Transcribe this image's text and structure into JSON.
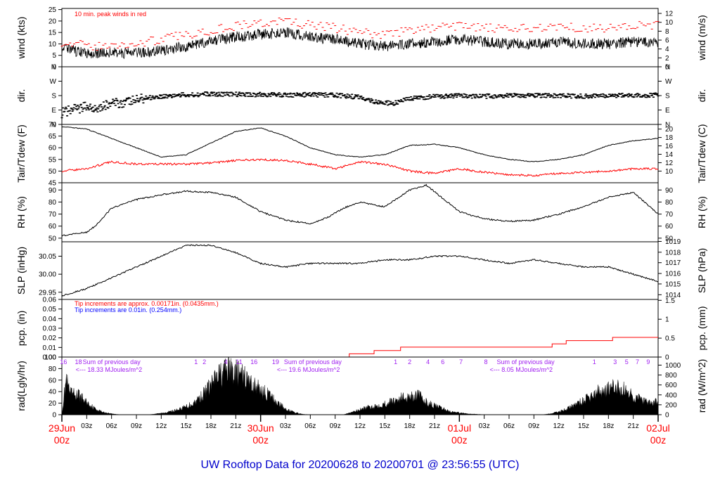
{
  "title": "UW Rooftop Data for 20200628  to  20200701 @ 23:56:55  (UTC)",
  "colors": {
    "red": "#ff0000",
    "blue": "#0000ff",
    "purple": "#a020f0",
    "black": "#000000",
    "title_blue": "#0000cc"
  },
  "x_axis": {
    "hour_ticks": [
      "03z",
      "06z",
      "09z",
      "12z",
      "15z",
      "18z",
      "21z",
      "03z",
      "06z",
      "09z",
      "12z",
      "15z",
      "18z",
      "21z",
      "03z",
      "06z",
      "09z",
      "12z",
      "15z",
      "18z",
      "21z"
    ],
    "hour_positions_h": [
      3,
      6,
      9,
      12,
      15,
      18,
      21,
      27,
      30,
      33,
      36,
      39,
      42,
      45,
      51,
      54,
      57,
      60,
      63,
      66,
      69
    ],
    "day_labels": [
      {
        "date": "29Jun",
        "time": "00z",
        "h": 0
      },
      {
        "date": "30Jun",
        "time": "00z",
        "h": 24
      },
      {
        "date": "01Jul",
        "time": "00z",
        "h": 48
      },
      {
        "date": "02Jul",
        "time": "00z",
        "h": 72
      }
    ]
  },
  "chart_data": [
    {
      "type": "line",
      "id": "wind",
      "ylabel": "wind (kts)",
      "ylabel_right": "wind (m/s)",
      "ylim": [
        0,
        25.5
      ],
      "left_ticks": [
        "0",
        "5",
        "10",
        "15",
        "20",
        "25"
      ],
      "left_tick_values": [
        0,
        5,
        10,
        15,
        20,
        25
      ],
      "right_ticks": [
        "0",
        "2",
        "4",
        "6",
        "8",
        "10",
        "12"
      ],
      "right_tick_values_kts": [
        0,
        3.89,
        7.78,
        11.66,
        15.55,
        19.44,
        23.33
      ],
      "annotation": "10 min. peak winds in red",
      "series": [
        {
          "name": "wind speed (kts)",
          "x_h": [
            0,
            3,
            6,
            9,
            12,
            15,
            18,
            21,
            24,
            27,
            30,
            33,
            36,
            39,
            42,
            45,
            48,
            51,
            54,
            57,
            60,
            63,
            66,
            69,
            72
          ],
          "values": [
            8,
            6,
            6,
            6,
            7,
            9,
            11,
            13,
            14,
            15,
            13,
            12,
            10,
            9,
            10,
            11,
            12,
            11,
            10,
            10,
            11,
            10,
            10,
            11,
            11
          ]
        },
        {
          "name": "10 min. peak winds (kts)",
          "x_h": [
            0,
            3,
            6,
            9,
            12,
            15,
            18,
            21,
            24,
            27,
            30,
            33,
            36,
            39,
            42,
            45,
            48,
            51,
            54,
            57,
            60,
            63,
            66,
            69,
            72
          ],
          "values": [
            11,
            9,
            9,
            10,
            12,
            14,
            16,
            18,
            19,
            20,
            18,
            17,
            15,
            14,
            16,
            17,
            18,
            17,
            16,
            17,
            18,
            17,
            17,
            18,
            18
          ]
        }
      ]
    },
    {
      "type": "scatter",
      "id": "dir",
      "ylabel": "dir.",
      "ylabel_right": "dir.",
      "ylim": [
        0,
        360
      ],
      "left_ticks": [
        "N",
        "E",
        "S",
        "W",
        "N"
      ],
      "left_tick_values": [
        0,
        90,
        180,
        270,
        360
      ],
      "series": [
        {
          "name": "wind direction (deg)",
          "x_h": [
            0,
            1,
            2,
            3,
            4,
            5,
            6,
            8,
            10,
            12,
            15,
            18,
            21,
            24,
            27,
            30,
            33,
            36,
            38,
            40,
            42,
            45,
            48,
            51,
            54,
            57,
            60,
            63,
            66,
            69,
            72
          ],
          "values": [
            70,
            90,
            100,
            110,
            105,
            115,
            130,
            140,
            165,
            175,
            185,
            190,
            188,
            186,
            184,
            186,
            182,
            170,
            140,
            130,
            160,
            175,
            178,
            176,
            180,
            182,
            178,
            176,
            182,
            180,
            184
          ]
        }
      ]
    },
    {
      "type": "line",
      "id": "temp",
      "ylabel": "Tair/Tdew (F)",
      "ylabel_right": "Tair/Tdew (C)",
      "ylim": [
        45,
        70
      ],
      "left_ticks": [
        "45",
        "50",
        "55",
        "60",
        "65",
        "70"
      ],
      "left_tick_values": [
        45,
        50,
        55,
        60,
        65,
        70
      ],
      "right_ticks": [
        "10",
        "12",
        "14",
        "16",
        "18",
        "20"
      ],
      "right_tick_values_f": [
        50,
        53.6,
        57.2,
        60.8,
        64.4,
        68
      ],
      "series": [
        {
          "name": "Tair (F)",
          "x_h": [
            0,
            3,
            6,
            9,
            12,
            15,
            18,
            21,
            24,
            27,
            30,
            33,
            36,
            39,
            42,
            45,
            48,
            51,
            54,
            57,
            60,
            63,
            66,
            69,
            72
          ],
          "values": [
            69,
            68,
            64,
            60,
            56,
            57,
            62,
            67,
            68.5,
            65,
            60,
            57,
            56,
            57,
            61,
            61.5,
            60,
            57,
            55,
            54,
            55,
            57,
            61,
            63,
            64
          ]
        },
        {
          "name": "Tdew (F)",
          "x_h": [
            0,
            3,
            6,
            9,
            12,
            15,
            18,
            21,
            24,
            27,
            30,
            33,
            36,
            39,
            42,
            45,
            48,
            51,
            54,
            57,
            60,
            63,
            66,
            69,
            72
          ],
          "values": [
            50,
            51,
            54,
            53,
            53,
            53,
            53.5,
            54.5,
            55,
            54.5,
            53,
            51,
            54,
            53,
            50,
            49,
            51,
            49.5,
            48.5,
            48,
            49,
            49.5,
            50,
            51,
            51
          ]
        }
      ]
    },
    {
      "type": "line",
      "id": "rh",
      "ylabel": "RH (%)",
      "ylabel_right": "RH (%)",
      "ylim": [
        47,
        96
      ],
      "left_ticks": [
        "50",
        "60",
        "70",
        "80",
        "90"
      ],
      "left_tick_values": [
        50,
        60,
        70,
        80,
        90
      ],
      "series": [
        {
          "name": "RH (%)",
          "x_h": [
            0,
            3,
            4,
            6,
            9,
            12,
            15,
            18,
            21,
            24,
            27,
            30,
            32,
            34,
            36,
            39,
            42,
            44,
            48,
            51,
            54,
            57,
            60,
            63,
            66,
            69,
            72
          ],
          "values": [
            52,
            55,
            60,
            75,
            82,
            86,
            89,
            88,
            84,
            72,
            65,
            62,
            67,
            75,
            80,
            76,
            90,
            94,
            72,
            66,
            64,
            65,
            70,
            76,
            84,
            88,
            70
          ]
        }
      ]
    },
    {
      "type": "line",
      "id": "slp",
      "ylabel": "SLP (inHg)",
      "ylabel_right": "SLP (hPa)",
      "ylim": [
        29.93,
        30.09
      ],
      "left_ticks": [
        "29.95",
        "30.00",
        "30.05"
      ],
      "left_tick_values": [
        29.95,
        30.0,
        30.05
      ],
      "right_ticks": [
        "1014",
        "1015",
        "1016",
        "1017",
        "1018",
        "1019"
      ],
      "right_tick_values_inhg": [
        29.943,
        29.973,
        30.002,
        30.032,
        30.061,
        30.091
      ],
      "series": [
        {
          "name": "SLP (inHg)",
          "x_h": [
            0,
            3,
            6,
            9,
            12,
            15,
            18,
            21,
            24,
            27,
            30,
            33,
            36,
            39,
            42,
            45,
            48,
            51,
            54,
            57,
            60,
            63,
            66,
            69,
            72
          ],
          "values": [
            29.94,
            29.96,
            29.99,
            30.02,
            30.05,
            30.08,
            30.08,
            30.06,
            30.03,
            30.02,
            30.03,
            30.03,
            30.03,
            30.04,
            30.04,
            30.05,
            30.05,
            30.04,
            30.03,
            30.04,
            30.03,
            30.02,
            30.02,
            30.0,
            29.98
          ]
        }
      ]
    },
    {
      "type": "line",
      "id": "pcp",
      "ylabel": "pcp. (in)",
      "ylabel_right": "pcp. (mm)",
      "ylim": [
        0,
        0.06
      ],
      "left_ticks": [
        "0.00",
        "0.01",
        "0.02",
        "0.03",
        "0.04",
        "0.05",
        "0.06"
      ],
      "left_tick_values": [
        0,
        0.01,
        0.02,
        0.03,
        0.04,
        0.05,
        0.06
      ],
      "right_ticks": [
        "0",
        "0.5",
        "1",
        "1.5"
      ],
      "right_tick_values_in": [
        0,
        0.01969,
        0.03937,
        0.05906
      ],
      "annotations": [
        "Tip increments are approx. 0.00171in. (0.0435mm.)",
        "Tip increments are 0.01in. (0.254mm.)"
      ],
      "series": [
        {
          "name": "accumulated precipitation (in)",
          "step": true,
          "x_h": [
            0,
            34.7,
            37.7,
            40.9,
            59.2,
            60.9,
            66.5,
            72
          ],
          "values": [
            0,
            0.0034,
            0.0068,
            0.0103,
            0.0137,
            0.0171,
            0.0205,
            0.0205
          ]
        }
      ]
    },
    {
      "type": "area",
      "id": "rad",
      "ylabel": "rad(Lgly/hr)",
      "ylabel_right": "rad (W/m^2)",
      "ylim": [
        0,
        100
      ],
      "left_ticks": [
        "0",
        "20",
        "40",
        "60",
        "80",
        "100"
      ],
      "left_tick_values": [
        0,
        20,
        40,
        60,
        80,
        100
      ],
      "right_ticks": [
        "0",
        "200",
        "400",
        "600",
        "800",
        "1000"
      ],
      "right_tick_values_lgly": [
        0,
        17.2,
        34.4,
        51.6,
        68.8,
        86.0
      ],
      "daily_sums": [
        "<--- 18.33 MJoules/m^2",
        "<--- 19.6 MJoules/m^2",
        "<--- 8.05 MJoules/m^2"
      ],
      "sum_labels": [
        "Sum of previous day",
        "Sum of previous day",
        "Sum of previous day"
      ],
      "hour_marks": [
        {
          "text": "16",
          "h": 0.2
        },
        {
          "text": "18",
          "h": 2.0
        },
        {
          "text": "1",
          "h": 16.2
        },
        {
          "text": "2",
          "h": 17.2
        },
        {
          "text": "4",
          "h": 19.8
        },
        {
          "text": "11",
          "h": 21.4
        },
        {
          "text": "16",
          "h": 23.2
        },
        {
          "text": "19",
          "h": 25.8
        },
        {
          "text": "1",
          "h": 40.3
        },
        {
          "text": "2",
          "h": 42.0
        },
        {
          "text": "4",
          "h": 44.2
        },
        {
          "text": "6",
          "h": 46.0
        },
        {
          "text": "7",
          "h": 48.2
        },
        {
          "text": "8",
          "h": 51.2
        },
        {
          "text": "1",
          "h": 64.3
        },
        {
          "text": "3",
          "h": 66.8
        },
        {
          "text": "5",
          "h": 68.2
        },
        {
          "text": "7",
          "h": 69.5
        },
        {
          "text": "9",
          "h": 70.8
        }
      ],
      "series": [
        {
          "name": "solar radiation (Lgly/hr)",
          "x_h": [
            0,
            0.5,
            1,
            2,
            3,
            4,
            5,
            6,
            7,
            10.5,
            11,
            12,
            13,
            14,
            15,
            16,
            17,
            18,
            19,
            20,
            21,
            22,
            23,
            24,
            25,
            26,
            27,
            28,
            29,
            30,
            31.5,
            34,
            35,
            36,
            37,
            38,
            39,
            40,
            41,
            42,
            43,
            44,
            45,
            46,
            47,
            48,
            49,
            50,
            51,
            58,
            59,
            60,
            61,
            62,
            63,
            64,
            65,
            66,
            67,
            68,
            69,
            70,
            71,
            72
          ],
          "values": [
            0,
            70,
            42,
            40,
            25,
            12,
            5,
            2,
            0,
            0,
            1,
            3,
            6,
            10,
            16,
            25,
            40,
            60,
            80,
            92,
            85,
            75,
            62,
            50,
            40,
            25,
            12,
            5,
            1,
            0,
            0,
            0,
            5,
            10,
            15,
            18,
            22,
            28,
            34,
            38,
            40,
            25,
            18,
            12,
            6,
            4,
            2,
            1,
            0,
            0,
            2,
            6,
            12,
            20,
            28,
            38,
            48,
            52,
            55,
            50,
            38,
            30,
            22,
            28
          ]
        }
      ]
    }
  ]
}
